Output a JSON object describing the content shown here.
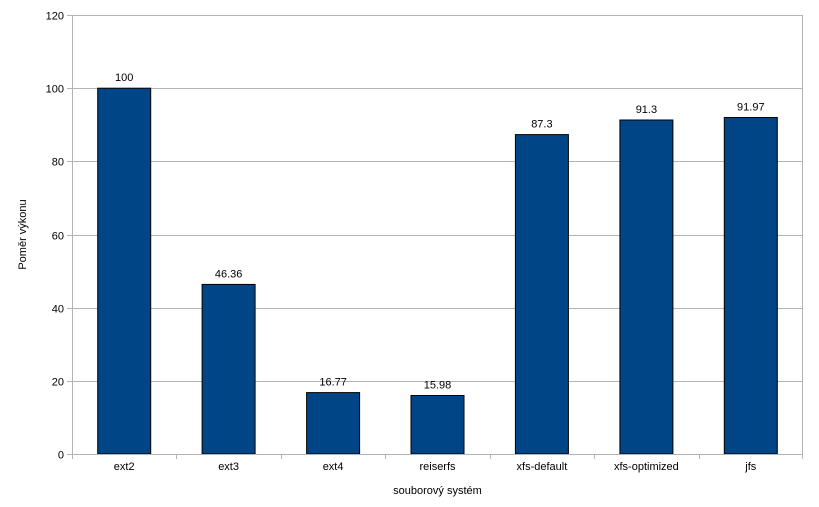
{
  "chart_data": {
    "type": "bar",
    "title": "",
    "xlabel": "souborový systém",
    "ylabel": "Poměr výkonu",
    "categories": [
      "ext2",
      "ext3",
      "ext4",
      "reiserfs",
      "xfs-default",
      "xfs-optimized",
      "jfs"
    ],
    "values": [
      100,
      46.36,
      16.77,
      15.98,
      87.3,
      91.3,
      91.97
    ],
    "data_labels": [
      "100",
      "46.36",
      "16.77",
      "15.98",
      "87.3",
      "91.3",
      "91.97"
    ],
    "ylim": [
      0,
      120
    ],
    "yticks": [
      0,
      20,
      40,
      60,
      80,
      100,
      120
    ],
    "grid": true,
    "legend": "none",
    "colors": {
      "bar": "#004586",
      "bar_outline": "#000000",
      "grid": "#b3b3b3",
      "axis": "#b3b3b3"
    }
  }
}
